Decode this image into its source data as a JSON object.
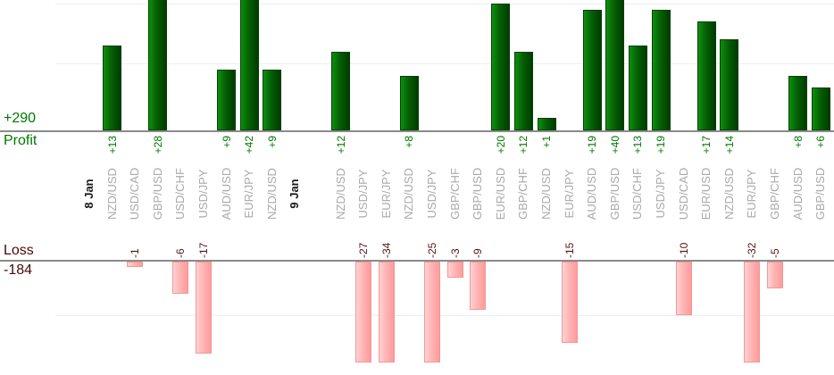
{
  "chart_data": {
    "type": "bar",
    "title": "",
    "profit_axis": {
      "label": "Profit",
      "total_label": "+290",
      "gridline_values": [
        10,
        20
      ]
    },
    "loss_axis": {
      "label": "Loss",
      "total_label": "-184",
      "gridline_values": [
        -10
      ]
    },
    "colors": {
      "profit_text": "#007700",
      "loss_text": "#4d0606",
      "profit_bar": "#056005",
      "profit_bar_border": "#024002",
      "loss_bar": "#ffb5b5",
      "loss_bar_border": "#f29898",
      "pair_label": "#a9a9a9",
      "axis_line": "#8a8a8a",
      "gridline": "#eeeeee"
    },
    "groups": [
      {
        "date": "8 Jan",
        "trades": [
          {
            "pair": "NZD/USD",
            "value": 13,
            "label": "+13"
          },
          {
            "pair": "USD/CAD",
            "value": -1,
            "label": "-1"
          },
          {
            "pair": "GBP/USD",
            "value": 28,
            "label": "+28"
          },
          {
            "pair": "USD/CHF",
            "value": -6,
            "label": "-6"
          },
          {
            "pair": "USD/JPY",
            "value": -17,
            "label": "-17"
          },
          {
            "pair": "AUD/USD",
            "value": 9,
            "label": "+9"
          },
          {
            "pair": "EUR/JPY",
            "value": 42,
            "label": "+42"
          },
          {
            "pair": "NZD/USD",
            "value": 9,
            "label": "+9"
          }
        ]
      },
      {
        "date": "9 Jan",
        "trades": [
          {
            "pair": "NZD/USD",
            "value": 12,
            "label": "+12"
          },
          {
            "pair": "USD/JPY",
            "value": -27,
            "label": "-27"
          },
          {
            "pair": "EUR/JPY",
            "value": -34,
            "label": "-34"
          },
          {
            "pair": "NZD/USD",
            "value": 8,
            "label": "+8"
          },
          {
            "pair": "USD/JPY",
            "value": -25,
            "label": "-25"
          },
          {
            "pair": "GBP/CHF",
            "value": -3,
            "label": "-3"
          },
          {
            "pair": "GBP/USD",
            "value": -9,
            "label": "-9"
          },
          {
            "pair": "EUR/USD",
            "value": 20,
            "label": "+20"
          },
          {
            "pair": "GBP/CHF",
            "value": 12,
            "label": "+12"
          },
          {
            "pair": "NZD/USD",
            "value": 1,
            "label": "+1"
          },
          {
            "pair": "EUR/JPY",
            "value": -15,
            "label": "-15"
          },
          {
            "pair": "AUD/USD",
            "value": 19,
            "label": "+19"
          },
          {
            "pair": "GBP/USD",
            "value": 40,
            "label": "+40"
          },
          {
            "pair": "USD/CHF",
            "value": 13,
            "label": "+13"
          },
          {
            "pair": "USD/JPY",
            "value": 19,
            "label": "+19"
          },
          {
            "pair": "USD/CAD",
            "value": -10,
            "label": "-10"
          },
          {
            "pair": "EUR/USD",
            "value": 17,
            "label": "+17"
          },
          {
            "pair": "NZD/USD",
            "value": 14,
            "label": "+14"
          },
          {
            "pair": "EUR/JPY",
            "value": -32,
            "label": "-32"
          },
          {
            "pair": "GBP/CHF",
            "value": -5,
            "label": "-5"
          },
          {
            "pair": "AUD/USD",
            "value": 8,
            "label": "+8"
          },
          {
            "pair": "GBP/USD",
            "value": 6,
            "label": "+6"
          }
        ]
      }
    ]
  }
}
